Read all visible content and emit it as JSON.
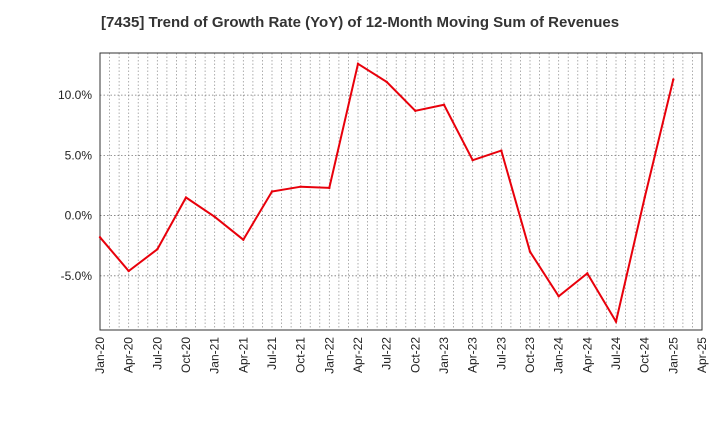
{
  "chart_data": {
    "type": "line",
    "title": "[7435]  Trend of Growth Rate (YoY) of 12-Month Moving Sum of Revenues",
    "xlabel": "",
    "ylabel": "",
    "x_tick_labels": [
      "Jan-20",
      "Apr-20",
      "Jul-20",
      "Oct-20",
      "Jan-21",
      "Apr-21",
      "Jul-21",
      "Oct-21",
      "Jan-22",
      "Apr-22",
      "Jul-22",
      "Oct-22",
      "Jan-23",
      "Apr-23",
      "Jul-23",
      "Oct-23",
      "Jan-24",
      "Apr-24",
      "Jul-24",
      "Oct-24",
      "Jan-25",
      "Apr-25"
    ],
    "y_ticks": [
      -5.0,
      0.0,
      5.0,
      10.0
    ],
    "y_tick_labels": [
      "-5.0%",
      "0.0%",
      "5.0%",
      "10.0%"
    ],
    "ylim": [
      -9.5,
      13.5
    ],
    "grid": true,
    "series": [
      {
        "color": "#e8000b",
        "x": [
          "Jan-20",
          "Apr-20",
          "Jul-20",
          "Oct-20",
          "Jan-21",
          "Apr-21",
          "Jul-21",
          "Oct-21",
          "Jan-22",
          "Apr-22",
          "Jul-22",
          "Oct-22",
          "Jan-23",
          "Apr-23",
          "Jul-23",
          "Oct-23",
          "Jan-24",
          "Apr-24",
          "Jul-24",
          "Oct-24",
          "Jan-25"
        ],
        "values": [
          -1.8,
          -4.6,
          -2.8,
          1.5,
          -0.1,
          -2.0,
          2.0,
          2.4,
          2.3,
          12.6,
          11.1,
          8.7,
          9.2,
          4.6,
          5.4,
          -3.0,
          -6.7,
          -4.8,
          -8.8,
          1.5,
          11.3
        ]
      }
    ]
  }
}
